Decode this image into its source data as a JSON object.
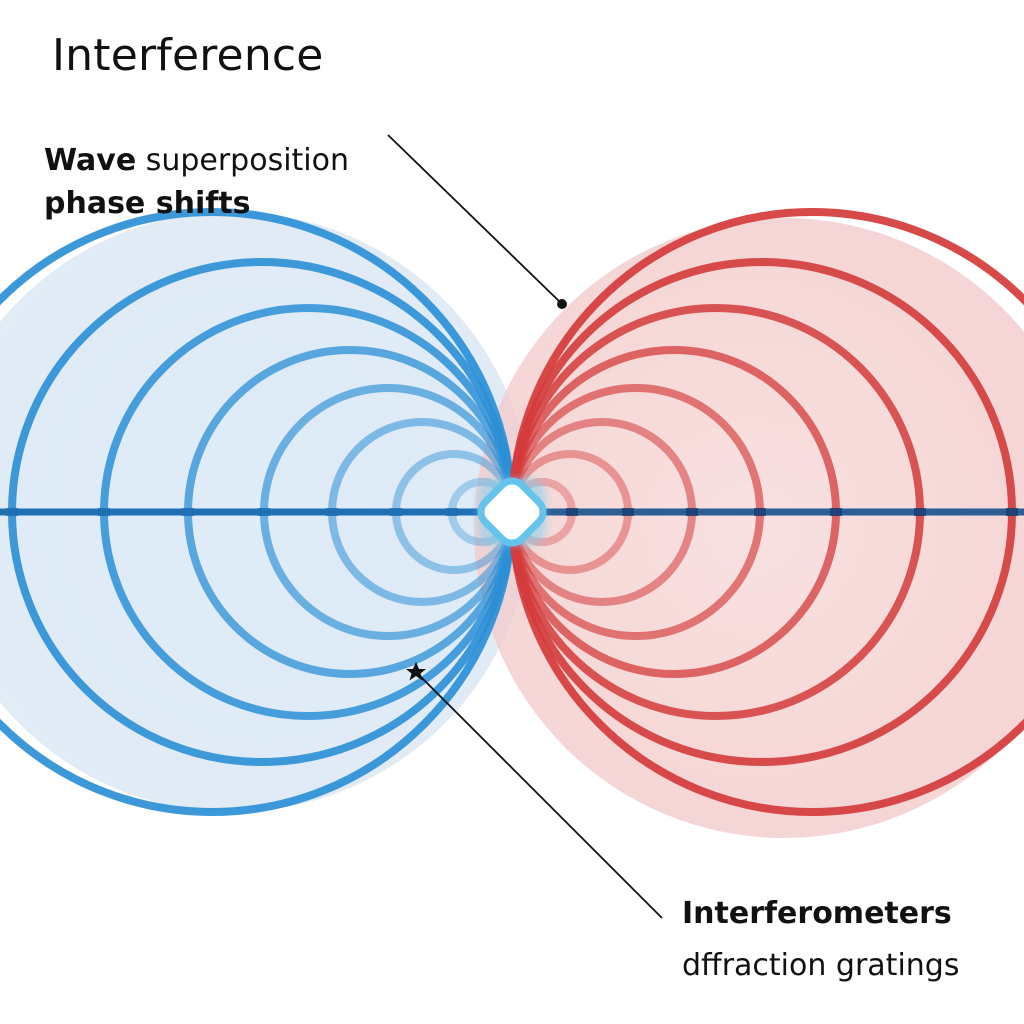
{
  "title": "Interference",
  "labels": {
    "wave_bold": "Wave",
    "wave_rest": " superposition",
    "phase_shifts": "phase shifts",
    "interferometers": "Interferometers",
    "diffraction": "dffraction gratings"
  },
  "colors": {
    "blue": "#2b8fd6",
    "blue_light": "#d7e7f5",
    "red": "#d43b3b",
    "red_light": "#f6d3d3",
    "axis_blue": "#1f6fb5",
    "axis_dark": "#1d3c6e",
    "leader": "#111111"
  },
  "icons": {
    "center_source": "rounded-diamond-icon",
    "star_marker": "star-icon"
  }
}
